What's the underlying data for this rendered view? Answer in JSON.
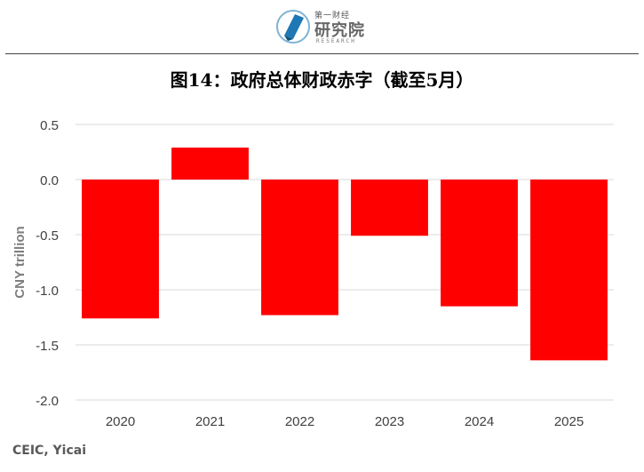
{
  "header": {
    "logo_icon": "yicai-research-logo-icon",
    "logo_top": "第一财经",
    "logo_main": "研究院",
    "logo_sub": "RESEARCH"
  },
  "title": "图14：政府总体财政赤字（截至5月）",
  "source": "CEIC, Yicai",
  "colors": {
    "bar": "#ff0000",
    "grid": "#d9d9d9",
    "axis_text": "#404040",
    "ylabel_text": "#7f7f7f"
  },
  "chart_data": {
    "type": "bar",
    "title": "",
    "xlabel": "",
    "ylabel": "CNY trillion",
    "categories": [
      "2020",
      "2021",
      "2022",
      "2023",
      "2024",
      "2025"
    ],
    "values": [
      -1.26,
      0.29,
      -1.23,
      -0.51,
      -1.15,
      -1.64
    ],
    "ylim": [
      -2.0,
      0.5
    ],
    "yticks": [
      0.5,
      0.0,
      -0.5,
      -1.0,
      -1.5,
      -2.0
    ],
    "ytick_labels": [
      "0.5",
      "0.0",
      "-0.5",
      "-1.0",
      "-1.5",
      "-2.0"
    ],
    "grid": true,
    "legend": "none"
  }
}
